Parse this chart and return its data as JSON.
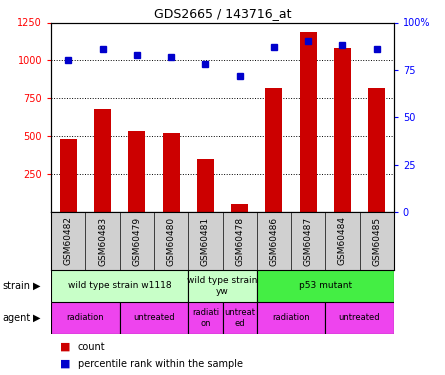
{
  "title": "GDS2665 / 143716_at",
  "samples": [
    "GSM60482",
    "GSM60483",
    "GSM60479",
    "GSM60480",
    "GSM60481",
    "GSM60478",
    "GSM60486",
    "GSM60487",
    "GSM60484",
    "GSM60485"
  ],
  "counts": [
    480,
    680,
    535,
    520,
    350,
    50,
    815,
    1190,
    1080,
    820
  ],
  "percentiles": [
    80,
    86,
    83,
    82,
    78,
    72,
    87,
    90,
    88,
    86
  ],
  "ylim_left": [
    0,
    1250
  ],
  "ylim_right": [
    0,
    100
  ],
  "yticks_left": [
    250,
    500,
    750,
    1000,
    1250
  ],
  "yticks_right": [
    0,
    25,
    50,
    75,
    100
  ],
  "strain_groups": [
    {
      "label": "wild type strain w1118",
      "start": 0,
      "end": 4,
      "color": "#C8FFC8"
    },
    {
      "label": "wild type strain\nyw",
      "start": 4,
      "end": 6,
      "color": "#C8FFC8"
    },
    {
      "label": "p53 mutant",
      "start": 6,
      "end": 10,
      "color": "#44EE44"
    }
  ],
  "agent_groups": [
    {
      "label": "radiation",
      "start": 0,
      "end": 2
    },
    {
      "label": "untreated",
      "start": 2,
      "end": 4
    },
    {
      "label": "radiati\non",
      "start": 4,
      "end": 5
    },
    {
      "label": "untreat\ned",
      "start": 5,
      "end": 6
    },
    {
      "label": "radiation",
      "start": 6,
      "end": 8
    },
    {
      "label": "untreated",
      "start": 8,
      "end": 10
    }
  ],
  "bar_color": "#CC0000",
  "dot_color": "#0000CC",
  "sample_bg_color": "#D0D0D0",
  "agent_color": "#EE44EE"
}
